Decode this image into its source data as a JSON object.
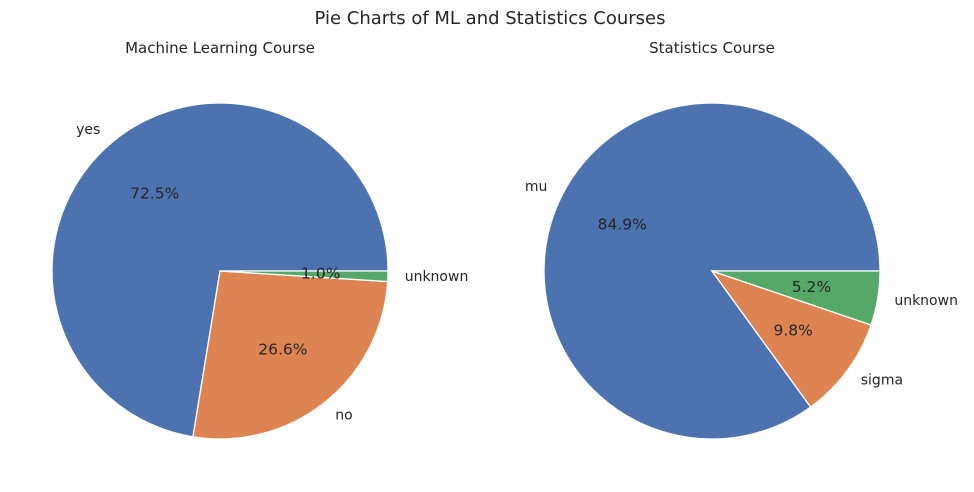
{
  "figure": {
    "title": "Pie Charts of ML and Statistics Courses"
  },
  "chart_data": [
    {
      "type": "pie",
      "title": "Machine Learning Course",
      "categories": [
        "yes",
        "no",
        "unknown"
      ],
      "values": [
        72.5,
        26.6,
        1.0
      ],
      "labels": [
        "72.5%",
        "26.6%",
        "1.0%"
      ],
      "colors": [
        "#4c72b0",
        "#dd8452",
        "#55a868"
      ],
      "start_angle_deg": 0,
      "direction": "counterclockwise"
    },
    {
      "type": "pie",
      "title": "Statistics Course",
      "categories": [
        "mu",
        "sigma",
        "unknown"
      ],
      "values": [
        84.9,
        9.8,
        5.2
      ],
      "labels": [
        "84.9%",
        "9.8%",
        "5.2%"
      ],
      "colors": [
        "#4c72b0",
        "#dd8452",
        "#55a868"
      ],
      "start_angle_deg": 0,
      "direction": "counterclockwise"
    }
  ]
}
